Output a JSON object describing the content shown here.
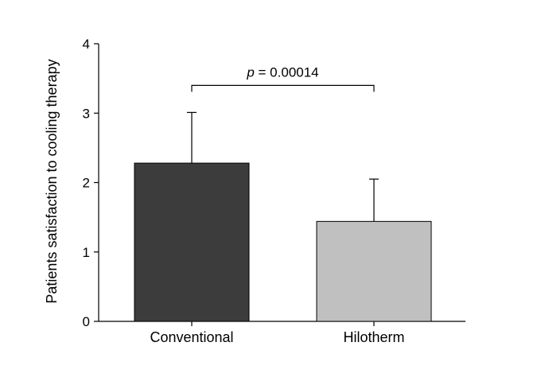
{
  "chart_data": {
    "type": "bar",
    "categories": [
      "Conventional",
      "Hilotherm"
    ],
    "values": [
      2.28,
      1.44
    ],
    "errors": [
      0.73,
      0.61
    ],
    "colors": [
      "#3c3c3c",
      "#c0c0c0"
    ],
    "ylabel": "Patients satisfaction to cooling therapy",
    "xlabel": "",
    "ylim": [
      0,
      4
    ],
    "yticks": [
      0,
      1,
      2,
      3,
      4
    ],
    "grid": false,
    "annotation": {
      "prefix": "p",
      "text": " = 0.00014",
      "between": [
        "Conventional",
        "Hilotherm"
      ],
      "y": 3.4
    }
  }
}
